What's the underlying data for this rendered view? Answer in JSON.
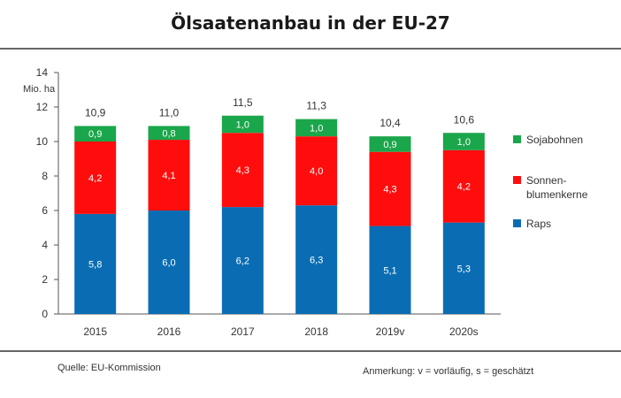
{
  "title": "Ölsaatenanbau in der EU-27",
  "source": "Quelle: EU-Kommission",
  "note": "Anmerkung: v = vorläufig, s = geschätzt",
  "chart_data": {
    "type": "bar",
    "stacked": true,
    "title": "Ölsaatenanbau in der EU-27",
    "ylabel": "Mio. ha",
    "ylim": [
      0,
      14
    ],
    "yticks": [
      0,
      2,
      4,
      6,
      8,
      10,
      12,
      14
    ],
    "categories": [
      "2015",
      "2016",
      "2017",
      "2018",
      "2019v",
      "2020s"
    ],
    "totals": [
      "10,9",
      "11,0",
      "11,5",
      "11,3",
      "10,4",
      "10,6"
    ],
    "series": [
      {
        "name": "Raps",
        "color": "#0a6db3",
        "values": [
          5.8,
          6.0,
          6.2,
          6.3,
          5.1,
          5.3
        ],
        "labels": [
          "5,8",
          "6,0",
          "6,2",
          "6,3",
          "5,1",
          "5,3"
        ]
      },
      {
        "name": "Sonnen-blumenkerne",
        "legend_lines": [
          "Sonnen-",
          "blumenkerne"
        ],
        "color": "#ff0d0d",
        "values": [
          4.2,
          4.1,
          4.3,
          4.0,
          4.3,
          4.2
        ],
        "labels": [
          "4,2",
          "4,1",
          "4,3",
          "4,0",
          "4,3",
          "4,2"
        ]
      },
      {
        "name": "Sojabohnen",
        "color": "#1aa64a",
        "values": [
          0.9,
          0.8,
          1.0,
          1.0,
          0.9,
          1.0
        ],
        "labels": [
          "0,9",
          "0,8",
          "1,0",
          "1,0",
          "0,9",
          "1,0"
        ]
      }
    ],
    "legend_position": "right",
    "grid": false
  }
}
